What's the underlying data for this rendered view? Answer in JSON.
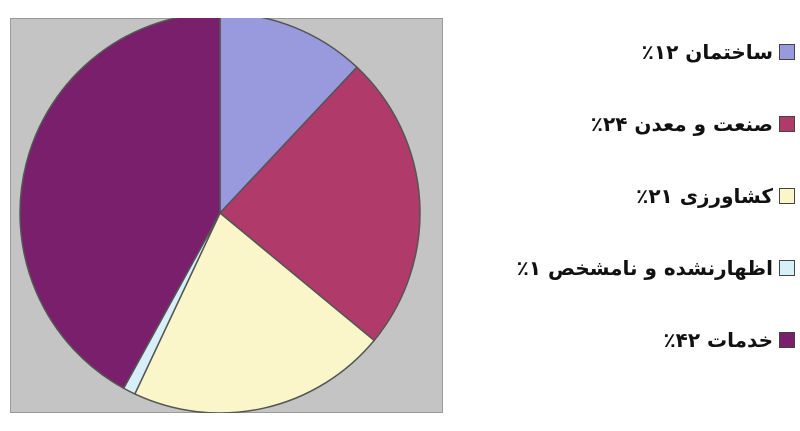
{
  "chart_data": {
    "type": "pie",
    "slices": [
      {
        "label": "ساختمان",
        "value": 12,
        "percent_text": "٪۱۲",
        "color": "#9999dd"
      },
      {
        "label": "صنعت و معدن",
        "value": 24,
        "percent_text": "٪۲۴",
        "color": "#b03a6a"
      },
      {
        "label": "کشاورزی",
        "value": 21,
        "percent_text": "٪۲۱",
        "color": "#fbf6c9"
      },
      {
        "label": "اظهارنشده و نامشخص",
        "value": 1,
        "percent_text": "٪۱",
        "color": "#d7eff8"
      },
      {
        "label": "خدمات",
        "value": 42,
        "percent_text": "٪۴۲",
        "color": "#7a1f6c"
      }
    ],
    "legend_position": "right",
    "start_angle_deg": 0,
    "direction": "clockwise"
  },
  "legend": {
    "items": [
      {
        "text": "ساختمان ۱۲٪"
      },
      {
        "text": "صنعت و معدن ۲۴٪"
      },
      {
        "text": "کشاورزی ۲۱٪"
      },
      {
        "text": "اظهارنشده و نامشخص ۱٪"
      },
      {
        "text": "خدمات ۴۲٪"
      }
    ]
  },
  "colors": {
    "plot_background": "#c4c4c4",
    "slice_stroke": "#555555"
  }
}
